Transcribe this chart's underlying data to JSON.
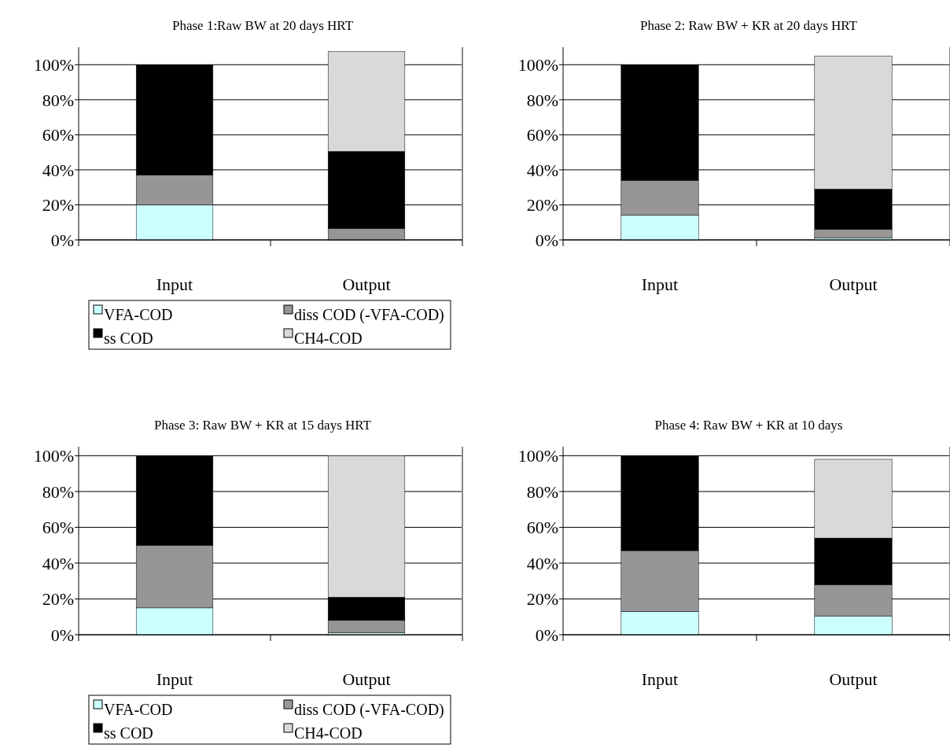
{
  "chart_data": [
    {
      "type": "bar",
      "stacked": true,
      "title": "Phase 1:Raw BW at 20 days HRT",
      "categories": [
        "Input",
        "Output"
      ],
      "ylim": [
        0,
        110
      ],
      "yticks": [
        {
          "value": 0,
          "label": "0%"
        },
        {
          "value": 20,
          "label": "20%"
        },
        {
          "value": 40,
          "label": "40%"
        },
        {
          "value": 60,
          "label": "60%"
        },
        {
          "value": 80,
          "label": "80%"
        },
        {
          "value": 100,
          "label": "100%"
        }
      ],
      "grid": "y",
      "legend": "bottom",
      "series": [
        {
          "name": "VFA-COD",
          "color": "#ccffff",
          "values": [
            20,
            null
          ]
        },
        {
          "name": "diss COD (-VFA-COD)",
          "color": "#969696",
          "values": [
            17,
            6.5
          ]
        },
        {
          "name": "ss COD",
          "color": "#000000",
          "values": [
            63,
            44
          ]
        },
        {
          "name": "CH4-COD",
          "color": "#d9d9d9",
          "values": [
            0,
            57
          ]
        }
      ]
    },
    {
      "type": "bar",
      "stacked": true,
      "title": "Phase 2: Raw BW + KR at 20 days HRT",
      "categories": [
        "Input",
        "Output"
      ],
      "ylim": [
        0,
        110
      ],
      "yticks": [
        {
          "value": 0,
          "label": "0%"
        },
        {
          "value": 20,
          "label": "20%"
        },
        {
          "value": 40,
          "label": "40%"
        },
        {
          "value": 60,
          "label": "60%"
        },
        {
          "value": 80,
          "label": "80%"
        },
        {
          "value": 100,
          "label": "100%"
        }
      ],
      "grid": "y",
      "series": [
        {
          "color": "#ccffff",
          "values": [
            14,
            1
          ]
        },
        {
          "color": "#969696",
          "values": [
            20,
            5
          ]
        },
        {
          "color": "#000000",
          "values": [
            66,
            23
          ]
        },
        {
          "color": "#d9d9d9",
          "values": [
            0,
            76
          ]
        }
      ]
    },
    {
      "type": "bar",
      "stacked": true,
      "title": "Phase 3: Raw BW + KR at 15 days HRT",
      "categories": [
        "Input",
        "Output"
      ],
      "ylim": [
        0,
        105
      ],
      "yticks": [
        {
          "value": 0,
          "label": "0%"
        },
        {
          "value": 20,
          "label": "20%"
        },
        {
          "value": 40,
          "label": "40%"
        },
        {
          "value": 60,
          "label": "60%"
        },
        {
          "value": 80,
          "label": "80%"
        },
        {
          "value": 100,
          "label": "100%"
        }
      ],
      "grid": "y",
      "legend": "bottom",
      "series": [
        {
          "name": "VFA-COD",
          "color": "#ccffff",
          "values": [
            15,
            1
          ]
        },
        {
          "name": "diss COD (-VFA-COD)",
          "color": "#969696",
          "values": [
            35,
            7
          ]
        },
        {
          "name": "ss COD",
          "color": "#000000",
          "values": [
            50,
            13
          ]
        },
        {
          "name": "CH4-COD",
          "color": "#d9d9d9",
          "values": [
            0,
            79
          ]
        }
      ]
    },
    {
      "type": "bar",
      "stacked": true,
      "title": "Phase 4: Raw BW + KR at 10 days",
      "categories": [
        "Input",
        "Output"
      ],
      "ylim": [
        0,
        105
      ],
      "yticks": [
        {
          "value": 0,
          "label": "0%"
        },
        {
          "value": 20,
          "label": "20%"
        },
        {
          "value": 40,
          "label": "40%"
        },
        {
          "value": 60,
          "label": "60%"
        },
        {
          "value": 80,
          "label": "80%"
        },
        {
          "value": 100,
          "label": "100%"
        }
      ],
      "grid": "y",
      "series": [
        {
          "color": "#ccffff",
          "values": [
            13,
            10.5
          ]
        },
        {
          "color": "#969696",
          "values": [
            34,
            17.5
          ]
        },
        {
          "color": "#000000",
          "values": [
            53,
            26
          ]
        },
        {
          "color": "#d9d9d9",
          "values": [
            0,
            44
          ]
        }
      ]
    }
  ]
}
